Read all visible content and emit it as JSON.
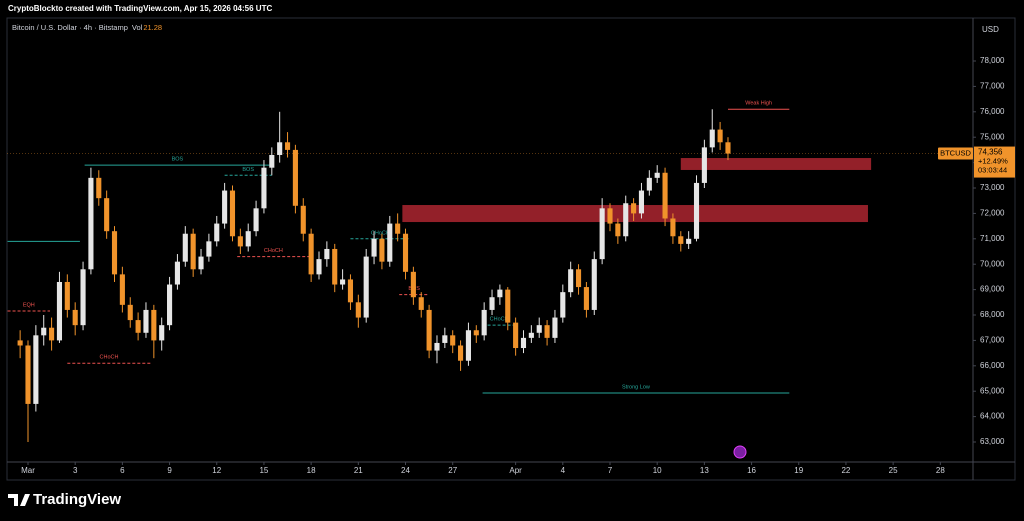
{
  "header": "CryptoBlockto created with TradingView.com, Apr 15, 2026 04:56 UTC",
  "brand": "TradingView",
  "chart_data": {
    "type": "candlestick",
    "legend": "Bitcoin / U.S. Dollar · 4h · Bitstamp",
    "volume_label": "Vol",
    "volume_value": "21.28",
    "currency": "USD",
    "symbol": "BTCUSD",
    "last": {
      "value": 74356,
      "label": "74,356"
    },
    "change": "+12.49%",
    "countdown": "03:03:44",
    "up_color": "#e6e6e6",
    "down_color": "#f0932b",
    "xlim": [
      -1.335,
      60.077
    ],
    "ylim": [
      62213,
      79693
    ],
    "xticks": [
      {
        "value": 0,
        "label": "Mar"
      },
      3,
      6,
      9,
      12,
      15,
      18,
      21,
      24,
      27,
      {
        "value": 31,
        "label": "Apr"
      },
      {
        "value": 34,
        "label": "4"
      },
      {
        "value": 37,
        "label": "7"
      },
      {
        "value": 40,
        "label": "10"
      },
      {
        "value": 43,
        "label": "13"
      },
      {
        "value": 46,
        "label": "16"
      },
      {
        "value": 49,
        "label": "19"
      },
      {
        "value": 52,
        "label": "22"
      },
      {
        "value": 55,
        "label": "25"
      },
      {
        "value": 58,
        "label": "28"
      }
    ],
    "yticks": [
      {
        "value": 63000,
        "label": "63,000"
      },
      {
        "value": 64000,
        "label": "64,000"
      },
      {
        "value": 65000,
        "label": "65,000"
      },
      {
        "value": 66000,
        "label": "66,000"
      },
      {
        "value": 67000,
        "label": "67,000"
      },
      {
        "value": 68000,
        "label": "68,000"
      },
      {
        "value": 69000,
        "label": "69,000"
      },
      {
        "value": 70000,
        "label": "70,000"
      },
      {
        "value": 71000,
        "label": "71,000"
      },
      {
        "value": 72000,
        "label": "72,000"
      },
      {
        "value": 73000,
        "label": "73,000"
      },
      {
        "value": 74000,
        "label": "74,000"
      },
      {
        "value": 75000,
        "label": "75,000"
      },
      {
        "value": 76000,
        "label": "76,000"
      },
      {
        "value": 77000,
        "label": "77,000"
      },
      {
        "value": 78000,
        "label": "78,000"
      }
    ],
    "zones": [
      {
        "y": [
          72330,
          71660
        ],
        "x": [
          23.8,
          53.4
        ],
        "color": "#a3232d"
      },
      {
        "y": [
          74180,
          73710
        ],
        "x": [
          41.5,
          53.6
        ],
        "color": "#a3232d"
      }
    ],
    "lines": [
      {
        "label": "BOS",
        "value": 73900,
        "x": [
          3.6,
          15.4
        ],
        "color": "#26a69a",
        "dash": false
      },
      {
        "label": "BOS",
        "value": 73500,
        "x": [
          12.5,
          15.5
        ],
        "color": "#26a69a",
        "dash": true
      },
      {
        "label": "CHoCH",
        "value": 66100,
        "x": [
          2.5,
          7.8
        ],
        "color": "#ef5350",
        "dash": true
      },
      {
        "label": "CHoCH",
        "value": 70300,
        "x": [
          13.3,
          17.9
        ],
        "color": "#ef5350",
        "dash": true
      },
      {
        "label": "CHoCH",
        "value": 71000,
        "x": [
          20.5,
          24.3
        ],
        "color": "#26a69a",
        "dash": true
      },
      {
        "label": "BOS",
        "value": 68800,
        "x": [
          23.6,
          25.5
        ],
        "color": "#ef5350",
        "dash": true
      },
      {
        "label": "CHoCH",
        "value": 67600,
        "x": [
          28.9,
          31
        ],
        "color": "#26a69a",
        "dash": true
      },
      {
        "label": "Strong Low",
        "value": 64930,
        "x": [
          28.9,
          48.4
        ],
        "color": "#26a69a",
        "dash": false
      },
      {
        "label": "Weak High",
        "value": 76100,
        "x": [
          44.5,
          48.4
        ],
        "color": "#ef5350",
        "dash": false
      },
      {
        "label": "EQH",
        "value": 68160,
        "x": [
          -1.3,
          1.4
        ],
        "color": "#ef5350",
        "dash": true
      },
      {
        "value": 70900,
        "x": [
          -1.3,
          3.3
        ],
        "color": "#26a69a",
        "dash": false
      }
    ],
    "x": [
      -0.5,
      0,
      0.5,
      1,
      1.5,
      2,
      2.5,
      3,
      3.5,
      4,
      4.5,
      5,
      5.5,
      6,
      6.5,
      7,
      7.5,
      8,
      8.5,
      9,
      9.5,
      10,
      10.5,
      11,
      11.5,
      12,
      12.5,
      13,
      13.5,
      14,
      14.5,
      15,
      15.5,
      16,
      16.5,
      17,
      17.5,
      18,
      18.5,
      19,
      19.5,
      20,
      20.5,
      21,
      21.5,
      22,
      22.5,
      23,
      23.5,
      24,
      24.5,
      25,
      25.5,
      26,
      26.5,
      27,
      27.5,
      28,
      28.5,
      29,
      29.5,
      30,
      30.5,
      31,
      31.5,
      32,
      32.5,
      33,
      33.5,
      34,
      34.5,
      35,
      35.5,
      36,
      36.5,
      37,
      37.5,
      38,
      38.5,
      39,
      39.5,
      40,
      40.5,
      41,
      41.5,
      42,
      42.5,
      43,
      43.5,
      44,
      44.5
    ],
    "ohlc": [
      [
        67000,
        67400,
        66300,
        66800
      ],
      [
        66800,
        67000,
        63000,
        64500
      ],
      [
        64500,
        67600,
        64200,
        67200
      ],
      [
        67200,
        68000,
        66800,
        67500
      ],
      [
        67500,
        67900,
        66600,
        67000
      ],
      [
        67000,
        69700,
        66900,
        69300
      ],
      [
        69300,
        69600,
        67900,
        68200
      ],
      [
        68200,
        68500,
        67200,
        67600
      ],
      [
        67600,
        70100,
        67400,
        69800
      ],
      [
        69800,
        73800,
        69600,
        73400
      ],
      [
        73400,
        73700,
        72300,
        72600
      ],
      [
        72600,
        72900,
        71000,
        71300
      ],
      [
        71300,
        71500,
        69300,
        69600
      ],
      [
        69600,
        69900,
        68100,
        68400
      ],
      [
        68400,
        68700,
        67500,
        67800
      ],
      [
        67800,
        68100,
        67000,
        67300
      ],
      [
        67300,
        68500,
        67100,
        68200
      ],
      [
        68200,
        68400,
        66300,
        67000
      ],
      [
        67000,
        67900,
        66600,
        67600
      ],
      [
        67600,
        69500,
        67400,
        69200
      ],
      [
        69200,
        70400,
        69000,
        70100
      ],
      [
        70100,
        71500,
        69900,
        71200
      ],
      [
        71200,
        71400,
        69500,
        69800
      ],
      [
        69800,
        70600,
        69600,
        70300
      ],
      [
        70300,
        71200,
        70100,
        70900
      ],
      [
        70900,
        71900,
        70700,
        71600
      ],
      [
        71600,
        73200,
        71400,
        72900
      ],
      [
        72900,
        73100,
        70900,
        71100
      ],
      [
        71100,
        71400,
        70400,
        70700
      ],
      [
        70700,
        71600,
        70500,
        71300
      ],
      [
        71300,
        72500,
        71100,
        72200
      ],
      [
        72200,
        74100,
        72000,
        73800
      ],
      [
        73800,
        74600,
        73500,
        74300
      ],
      [
        74300,
        76000,
        74000,
        74800
      ],
      [
        74800,
        75200,
        74200,
        74500
      ],
      [
        74500,
        74700,
        72000,
        72300
      ],
      [
        72300,
        72600,
        70900,
        71200
      ],
      [
        71200,
        71400,
        69300,
        69600
      ],
      [
        69600,
        70500,
        69400,
        70200
      ],
      [
        70200,
        70900,
        69900,
        70600
      ],
      [
        70600,
        70800,
        68900,
        69200
      ],
      [
        69200,
        69800,
        69000,
        69400
      ],
      [
        69400,
        69600,
        68200,
        68500
      ],
      [
        68500,
        68800,
        67500,
        67900
      ],
      [
        67900,
        70600,
        67700,
        70300
      ],
      [
        70300,
        71300,
        70000,
        71000
      ],
      [
        71000,
        71200,
        69800,
        70100
      ],
      [
        70100,
        71900,
        69900,
        71600
      ],
      [
        71600,
        72000,
        70900,
        71200
      ],
      [
        71200,
        71400,
        69400,
        69700
      ],
      [
        69700,
        69900,
        68400,
        68700
      ],
      [
        68700,
        68900,
        67900,
        68200
      ],
      [
        68200,
        68400,
        66300,
        66600
      ],
      [
        66600,
        67200,
        66100,
        66900
      ],
      [
        66900,
        67500,
        66700,
        67200
      ],
      [
        67200,
        67400,
        66500,
        66800
      ],
      [
        66800,
        67000,
        65800,
        66200
      ],
      [
        66200,
        67700,
        66000,
        67400
      ],
      [
        67400,
        67600,
        66900,
        67200
      ],
      [
        67200,
        68500,
        67000,
        68200
      ],
      [
        68200,
        69000,
        68000,
        68700
      ],
      [
        68700,
        69200,
        68400,
        69000
      ],
      [
        69000,
        69100,
        67400,
        67700
      ],
      [
        67700,
        67900,
        66400,
        66700
      ],
      [
        66700,
        67400,
        66500,
        67100
      ],
      [
        67100,
        67600,
        66900,
        67300
      ],
      [
        67300,
        67900,
        67100,
        67600
      ],
      [
        67600,
        67800,
        66800,
        67100
      ],
      [
        67100,
        68200,
        66900,
        67900
      ],
      [
        67900,
        69200,
        67700,
        68900
      ],
      [
        68900,
        70100,
        68700,
        69800
      ],
      [
        69800,
        70000,
        68800,
        69100
      ],
      [
        69100,
        69300,
        67900,
        68200
      ],
      [
        68200,
        70500,
        68000,
        70200
      ],
      [
        70200,
        72600,
        70000,
        72200
      ],
      [
        72200,
        72400,
        71300,
        71600
      ],
      [
        71600,
        71800,
        70800,
        71100
      ],
      [
        71100,
        72700,
        70900,
        72400
      ],
      [
        72400,
        72600,
        71700,
        72000
      ],
      [
        72000,
        73200,
        71800,
        72900
      ],
      [
        72900,
        73700,
        72700,
        73400
      ],
      [
        73400,
        73900,
        73200,
        73600
      ],
      [
        73600,
        73800,
        71500,
        71800
      ],
      [
        71800,
        72000,
        70800,
        71100
      ],
      [
        71100,
        71300,
        70500,
        70800
      ],
      [
        70800,
        71300,
        70600,
        71000
      ],
      [
        71000,
        73500,
        70900,
        73200
      ],
      [
        73200,
        74900,
        73000,
        74600
      ],
      [
        74600,
        76100,
        74400,
        75300
      ],
      [
        75300,
        75600,
        74500,
        74800
      ],
      [
        74800,
        75000,
        74100,
        74356
      ]
    ]
  }
}
